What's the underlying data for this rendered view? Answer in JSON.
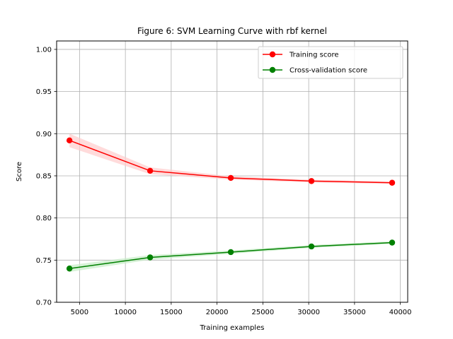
{
  "chart_data": {
    "type": "line",
    "title": "Figure 6: SVM Learning Curve with rbf kernel",
    "xlabel": "Training examples",
    "ylabel": "Score",
    "xlim": [
      2500,
      40800
    ],
    "ylim": [
      0.7,
      1.01
    ],
    "xticks": [
      5000,
      10000,
      15000,
      20000,
      25000,
      30000,
      35000,
      40000
    ],
    "yticks": [
      0.7,
      0.75,
      0.8,
      0.85,
      0.9,
      0.95,
      1.0
    ],
    "xtick_labels": [
      "5000",
      "10000",
      "15000",
      "20000",
      "25000",
      "30000",
      "35000",
      "40000"
    ],
    "ytick_labels": [
      "0.70",
      "0.75",
      "0.80",
      "0.85",
      "0.90",
      "0.95",
      "1.00"
    ],
    "grid": true,
    "legend_position": "top-right",
    "x": [
      3900,
      12700,
      21500,
      30300,
      39100
    ],
    "series": [
      {
        "name": "Training score",
        "color": "#ff0000",
        "values": [
          0.892,
          0.856,
          0.8475,
          0.8438,
          0.8418
        ],
        "band_low": [
          0.884,
          0.852,
          0.8455,
          0.8422,
          0.8404
        ],
        "band_high": [
          0.9,
          0.86,
          0.8495,
          0.8454,
          0.8432
        ],
        "band_color": "#ffcccc"
      },
      {
        "name": "Cross-validation score",
        "color": "#008000",
        "values": [
          0.74,
          0.7532,
          0.7595,
          0.7662,
          0.7708
        ],
        "band_low": [
          0.736,
          0.7505,
          0.7575,
          0.7645,
          0.7692
        ],
        "band_high": [
          0.744,
          0.756,
          0.7615,
          0.768,
          0.7724
        ],
        "band_color": "#c6ecc6"
      }
    ]
  }
}
